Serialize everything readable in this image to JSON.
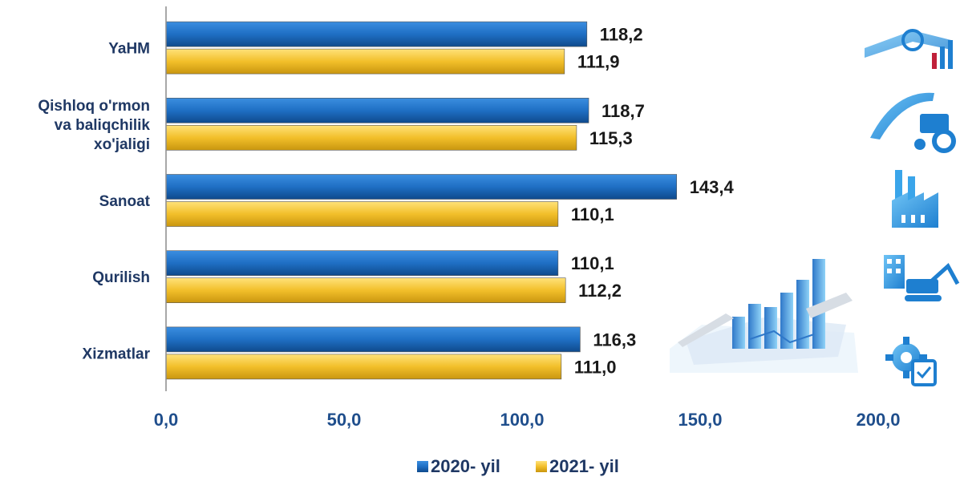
{
  "chart_data": {
    "type": "bar",
    "orientation": "horizontal",
    "categories": [
      [
        "YaHM"
      ],
      [
        "Qishloq o'rmon",
        "va baliqchilik",
        "xo'jaligi"
      ],
      [
        "Sanoat"
      ],
      [
        "Qurilish"
      ],
      [
        "Xizmatlar"
      ]
    ],
    "series": [
      {
        "name": "2020- yil",
        "values": [
          118.2,
          118.7,
          143.4,
          110.1,
          116.3
        ],
        "labels": [
          "118,2",
          "118,7",
          "143,4",
          "110,1",
          "116,3"
        ],
        "color": "#1f6fc4"
      },
      {
        "name": "2021- yil",
        "values": [
          111.9,
          115.3,
          110.1,
          112.2,
          111.0
        ],
        "labels": [
          "111,9",
          "115,3",
          "110,1",
          "112,2",
          "111,0"
        ],
        "color": "#f2bf2a"
      }
    ],
    "xlim": [
      0,
      200
    ],
    "xticks": [
      0,
      50,
      100,
      150,
      200
    ],
    "xtick_labels": [
      "0,0",
      "50,0",
      "100,0",
      "150,0",
      "200,0"
    ],
    "grid": false,
    "legend_position": "bottom-center",
    "icons": [
      "chart-gears-icon",
      "tractor-icon",
      "factory-icon",
      "construction-icon",
      "service-gear-icon"
    ]
  }
}
